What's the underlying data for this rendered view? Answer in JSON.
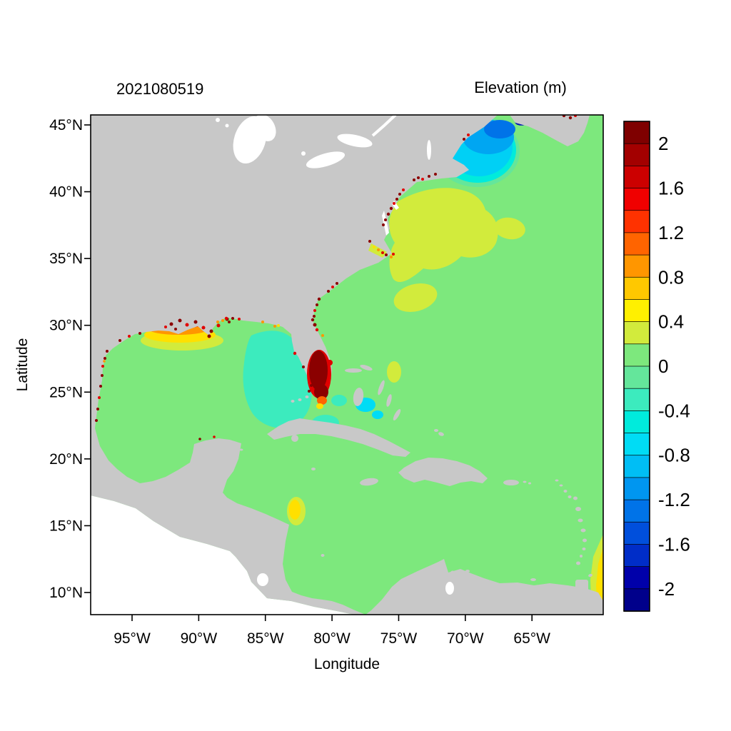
{
  "figure": {
    "date_label": "2021080519",
    "colorbar_title": "Elevation (m)",
    "xlabel": "Longitude",
    "ylabel": "Latitude"
  },
  "axes": {
    "lat_labels": [
      "45°N",
      "40°N",
      "35°N",
      "30°N",
      "25°N",
      "20°N",
      "15°N",
      "10°N"
    ],
    "lat_values": [
      45,
      40,
      35,
      30,
      25,
      20,
      15,
      10
    ],
    "lon_labels": [
      "95°W",
      "90°W",
      "85°W",
      "80°W",
      "75°W",
      "70°W",
      "65°W"
    ],
    "lon_values_w": [
      95,
      90,
      85,
      80,
      75,
      70,
      65
    ]
  },
  "colorbar": {
    "tick_labels": [
      "2",
      "1.6",
      "1.2",
      "0.8",
      "0.4",
      "0",
      "-0.4",
      "-0.8",
      "-1.2",
      "-1.6",
      "-2"
    ],
    "tick_values": [
      2,
      1.6,
      1.2,
      0.8,
      0.4,
      0,
      -0.4,
      -0.8,
      -1.2,
      -1.6,
      -2
    ],
    "range": [
      -2.2,
      2.2
    ],
    "step": 0.2,
    "palette_top_to_bottom": [
      "#7f0000",
      "#a30000",
      "#cc0000",
      "#f00000",
      "#ff3200",
      "#ff6400",
      "#ff9600",
      "#ffc800",
      "#fff000",
      "#d2eb3c",
      "#7de87d",
      "#64e69b",
      "#3cebbe",
      "#00ebdc",
      "#00dcf5",
      "#00bef5",
      "#0096f0",
      "#0073e8",
      "#004fdc",
      "#002dc8",
      "#0000aa",
      "#00008b"
    ]
  },
  "chart_data": {
    "type": "heatmap",
    "title": "2021080519",
    "colorbar_title": "Elevation (m)",
    "xlabel": "Longitude",
    "ylabel": "Latitude",
    "lat_ticks_deg_n": [
      45,
      40,
      35,
      30,
      25,
      20,
      15,
      10
    ],
    "lon_ticks_deg_w": [
      95,
      90,
      85,
      80,
      75,
      70,
      65
    ],
    "lat_range_deg_n": [
      8.3,
      45.8
    ],
    "lon_range_deg_w": [
      98.2,
      59.6
    ],
    "colorbar_ticks": [
      2,
      1.6,
      1.2,
      0.8,
      0.4,
      0,
      -0.4,
      -0.8,
      -1.2,
      -1.6,
      -2
    ],
    "colorbar_range_m": [
      -2.2,
      2.2
    ],
    "land_color": "#c8c8c8",
    "ocean_background_value_m": "0 to 0.2",
    "notable_regions": [
      {
        "region": "Open Atlantic, Caribbean Sea and western Gulf of Mexico",
        "elevation_m": 0.1
      },
      {
        "region": "Mid-Atlantic shelf off US east coast (35-42N)",
        "elevation_m": 0.3
      },
      {
        "region": "Eastern Gulf of Mexico / West Florida shelf",
        "elevation_m": -0.3
      },
      {
        "region": "Gulf of Maine",
        "elevation_m": -0.9
      },
      {
        "region": "Bay of Fundy",
        "elevation_m": -1.9
      },
      {
        "region": "South Florida / Lake Okeechobee area",
        "elevation_m": 2.1
      },
      {
        "region": "Louisiana-Mississippi coast",
        "elevation_m": 0.8
      },
      {
        "region": "Coastal estuaries along Gulf and Atlantic coasts (speckles)",
        "elevation_m": 1.9
      },
      {
        "region": "Honduras-Nicaragua coast patch",
        "elevation_m": 0.5
      },
      {
        "region": "Venezuela coast / southeastern map edge",
        "elevation_m": 0.5
      }
    ]
  }
}
